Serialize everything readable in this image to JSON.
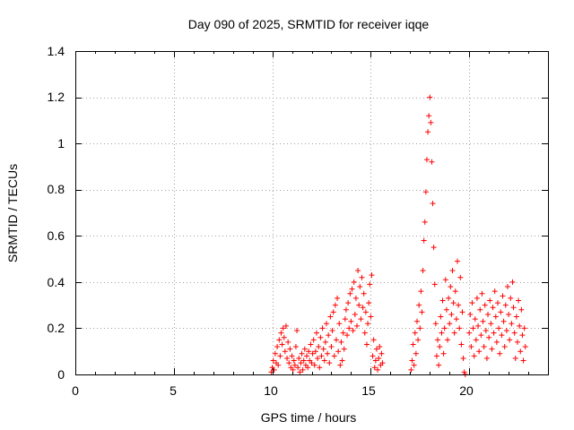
{
  "chart_data": {
    "type": "scatter",
    "title": "Day 090 of 2025, SRMTID for receiver iqqe",
    "xlabel": "GPS time / hours",
    "ylabel": "SRMTID / TECUs",
    "xlim": [
      0,
      24
    ],
    "ylim": [
      0,
      1.4
    ],
    "grid": true,
    "marker": "+",
    "color": "#ff0000",
    "x_ticks": [
      0,
      5,
      10,
      15,
      20
    ],
    "y_ticks": [
      0,
      0.2,
      0.4,
      0.6,
      0.8,
      1,
      1.2,
      1.4
    ],
    "x_tick_labels": [
      "0",
      "5",
      "10",
      "15",
      "20"
    ],
    "y_tick_labels": [
      "0",
      "0.2",
      "0.4",
      "0.6",
      "0.8",
      "1",
      "1.2",
      "1.4"
    ],
    "series": [
      {
        "name": "SRMTID",
        "points": [
          [
            9.95,
            0.01
          ],
          [
            10.0,
            0.03
          ],
          [
            10.05,
            0.06
          ],
          [
            10.1,
            0.02
          ],
          [
            10.15,
            0.09
          ],
          [
            10.2,
            0.05
          ],
          [
            10.25,
            0.12
          ],
          [
            10.3,
            0.04
          ],
          [
            10.35,
            0.15
          ],
          [
            10.4,
            0.08
          ],
          [
            10.45,
            0.18
          ],
          [
            10.5,
            0.13
          ],
          [
            10.55,
            0.2
          ],
          [
            10.6,
            0.16
          ],
          [
            10.65,
            0.1
          ],
          [
            10.7,
            0.21
          ],
          [
            10.75,
            0.07
          ],
          [
            10.8,
            0.14
          ],
          [
            10.85,
            0.05
          ],
          [
            10.9,
            0.11
          ],
          [
            10.95,
            0.03
          ],
          [
            11.0,
            0.08
          ],
          [
            11.05,
            0.02
          ],
          [
            11.1,
            0.06
          ],
          [
            11.15,
            0.04
          ],
          [
            11.2,
            0.12
          ],
          [
            11.25,
            0.19
          ],
          [
            11.3,
            0.03
          ],
          [
            11.35,
            0.07
          ],
          [
            11.4,
            0.01
          ],
          [
            11.45,
            0.05
          ],
          [
            11.5,
            0.09
          ],
          [
            11.55,
            0.02
          ],
          [
            11.6,
            0.06
          ],
          [
            11.65,
            0.11
          ],
          [
            11.7,
            0.04
          ],
          [
            11.75,
            0.08
          ],
          [
            11.8,
            0.03
          ],
          [
            11.85,
            0.1
          ],
          [
            11.9,
            0.06
          ],
          [
            11.95,
            0.13
          ],
          [
            12.0,
            0.05
          ],
          [
            12.05,
            0.09
          ],
          [
            12.1,
            0.15
          ],
          [
            12.15,
            0.04
          ],
          [
            12.2,
            0.1
          ],
          [
            12.25,
            0.18
          ],
          [
            12.3,
            0.07
          ],
          [
            12.35,
            0.12
          ],
          [
            12.4,
            0.03
          ],
          [
            12.45,
            0.16
          ],
          [
            12.5,
            0.08
          ],
          [
            12.55,
            0.2
          ],
          [
            12.6,
            0.11
          ],
          [
            12.65,
            0.06
          ],
          [
            12.7,
            0.14
          ],
          [
            12.75,
            0.22
          ],
          [
            12.8,
            0.09
          ],
          [
            12.85,
            0.17
          ],
          [
            12.9,
            0.05
          ],
          [
            12.95,
            0.25
          ],
          [
            13.0,
            0.12
          ],
          [
            13.05,
            0.19
          ],
          [
            13.1,
            0.27
          ],
          [
            13.15,
            0.08
          ],
          [
            13.2,
            0.3
          ],
          [
            13.25,
            0.15
          ],
          [
            13.3,
            0.33
          ],
          [
            13.35,
            0.1
          ],
          [
            13.4,
            0.22
          ],
          [
            13.45,
            0.04
          ],
          [
            13.5,
            0.14
          ],
          [
            13.55,
            0.06
          ],
          [
            13.6,
            0.18
          ],
          [
            13.65,
            0.11
          ],
          [
            13.7,
            0.24
          ],
          [
            13.75,
            0.28
          ],
          [
            13.8,
            0.17
          ],
          [
            13.85,
            0.31
          ],
          [
            13.9,
            0.2
          ],
          [
            13.95,
            0.35
          ],
          [
            14.0,
            0.23
          ],
          [
            14.05,
            0.37
          ],
          [
            14.1,
            0.19
          ],
          [
            14.15,
            0.4
          ],
          [
            14.2,
            0.26
          ],
          [
            14.25,
            0.33
          ],
          [
            14.3,
            0.21
          ],
          [
            14.35,
            0.45
          ],
          [
            14.4,
            0.3
          ],
          [
            14.45,
            0.38
          ],
          [
            14.5,
            0.24
          ],
          [
            14.55,
            0.42
          ],
          [
            14.6,
            0.29
          ],
          [
            14.65,
            0.35
          ],
          [
            14.7,
            0.18
          ],
          [
            14.75,
            0.27
          ],
          [
            14.8,
            0.13
          ],
          [
            14.85,
            0.22
          ],
          [
            14.9,
            0.31
          ],
          [
            14.95,
            0.39
          ],
          [
            15.0,
            0.25
          ],
          [
            15.05,
            0.43
          ],
          [
            15.1,
            0.08
          ],
          [
            15.15,
            0.15
          ],
          [
            15.2,
            0.03
          ],
          [
            15.25,
            0.06
          ],
          [
            15.3,
            0.11
          ],
          [
            15.35,
            0.02
          ],
          [
            15.4,
            0.07
          ],
          [
            15.45,
            0.12
          ],
          [
            15.5,
            0.04
          ],
          [
            15.55,
            0.09
          ],
          [
            15.6,
            0.05
          ],
          [
            17.05,
            0.02
          ],
          [
            17.1,
            0.06
          ],
          [
            17.15,
            0.13
          ],
          [
            17.2,
            0.04
          ],
          [
            17.25,
            0.18
          ],
          [
            17.3,
            0.09
          ],
          [
            17.35,
            0.23
          ],
          [
            17.4,
            0.15
          ],
          [
            17.45,
            0.3
          ],
          [
            17.5,
            0.2
          ],
          [
            17.55,
            0.36
          ],
          [
            17.6,
            0.27
          ],
          [
            17.65,
            0.45
          ],
          [
            17.7,
            0.58
          ],
          [
            17.75,
            0.66
          ],
          [
            17.8,
            0.79
          ],
          [
            17.85,
            0.93
          ],
          [
            17.9,
            1.05
          ],
          [
            17.95,
            1.12
          ],
          [
            18.0,
            1.2
          ],
          [
            18.05,
            1.09
          ],
          [
            18.1,
            0.92
          ],
          [
            18.15,
            0.74
          ],
          [
            18.2,
            0.55
          ],
          [
            18.25,
            0.39
          ],
          [
            18.3,
            0.22
          ],
          [
            18.35,
            0.08
          ],
          [
            18.4,
            0.15
          ],
          [
            18.45,
            0.04
          ],
          [
            18.5,
            0.12
          ],
          [
            18.55,
            0.25
          ],
          [
            18.6,
            0.18
          ],
          [
            18.65,
            0.32
          ],
          [
            18.7,
            0.09
          ],
          [
            18.75,
            0.2
          ],
          [
            18.8,
            0.41
          ],
          [
            18.85,
            0.28
          ],
          [
            18.9,
            0.15
          ],
          [
            18.95,
            0.33
          ],
          [
            19.0,
            0.22
          ],
          [
            19.05,
            0.38
          ],
          [
            19.1,
            0.26
          ],
          [
            19.15,
            0.45
          ],
          [
            19.2,
            0.31
          ],
          [
            19.25,
            0.18
          ],
          [
            19.3,
            0.36
          ],
          [
            19.35,
            0.24
          ],
          [
            19.4,
            0.49
          ],
          [
            19.45,
            0.3
          ],
          [
            19.5,
            0.2
          ],
          [
            19.55,
            0.42
          ],
          [
            19.6,
            0.13
          ],
          [
            19.65,
            0.27
          ],
          [
            19.7,
            0.07
          ],
          [
            19.75,
            0.01
          ],
          [
            19.8,
            0.0
          ],
          [
            20.0,
            0.18
          ],
          [
            20.05,
            0.26
          ],
          [
            20.1,
            0.12
          ],
          [
            20.15,
            0.31
          ],
          [
            20.2,
            0.2
          ],
          [
            20.25,
            0.08
          ],
          [
            20.3,
            0.24
          ],
          [
            20.35,
            0.15
          ],
          [
            20.4,
            0.33
          ],
          [
            20.45,
            0.21
          ],
          [
            20.5,
            0.1
          ],
          [
            20.55,
            0.28
          ],
          [
            20.6,
            0.17
          ],
          [
            20.65,
            0.35
          ],
          [
            20.7,
            0.23
          ],
          [
            20.75,
            0.12
          ],
          [
            20.8,
            0.3
          ],
          [
            20.85,
            0.19
          ],
          [
            20.9,
            0.07
          ],
          [
            20.95,
            0.26
          ],
          [
            21.0,
            0.16
          ],
          [
            21.05,
            0.32
          ],
          [
            21.1,
            0.22
          ],
          [
            21.15,
            0.11
          ],
          [
            21.2,
            0.29
          ],
          [
            21.25,
            0.18
          ],
          [
            21.3,
            0.36
          ],
          [
            21.35,
            0.25
          ],
          [
            21.4,
            0.14
          ],
          [
            21.45,
            0.31
          ],
          [
            21.5,
            0.2
          ],
          [
            21.55,
            0.09
          ],
          [
            21.6,
            0.27
          ],
          [
            21.65,
            0.17
          ],
          [
            21.7,
            0.34
          ],
          [
            21.75,
            0.23
          ],
          [
            21.8,
            0.12
          ],
          [
            21.85,
            0.3
          ],
          [
            21.9,
            0.19
          ],
          [
            21.95,
            0.38
          ],
          [
            22.0,
            0.26
          ],
          [
            22.05,
            0.15
          ],
          [
            22.1,
            0.33
          ],
          [
            22.15,
            0.22
          ],
          [
            22.2,
            0.4
          ],
          [
            22.25,
            0.29
          ],
          [
            22.3,
            0.18
          ],
          [
            22.35,
            0.07
          ],
          [
            22.4,
            0.25
          ],
          [
            22.45,
            0.14
          ],
          [
            22.5,
            0.32
          ],
          [
            22.55,
            0.21
          ],
          [
            22.6,
            0.1
          ],
          [
            22.65,
            0.28
          ],
          [
            22.7,
            0.17
          ],
          [
            22.75,
            0.06
          ],
          [
            22.8,
            0.2
          ],
          [
            22.85,
            0.12
          ]
        ]
      }
    ]
  }
}
